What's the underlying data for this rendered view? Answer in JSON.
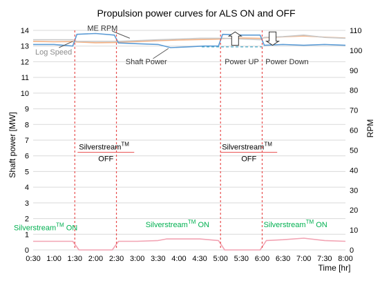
{
  "chart_data": {
    "type": "line",
    "title": "Propulsion power curves for ALS ON and OFF",
    "xlabel": "Time [hr]",
    "ylabel": "Shaft power [MW]",
    "y2label": "RPM",
    "xlim": [
      0.5,
      8.0
    ],
    "ylim": [
      0,
      14
    ],
    "y2lim": [
      0,
      110
    ],
    "x_ticks": [
      0.5,
      1.0,
      1.5,
      2.0,
      2.5,
      3.0,
      3.5,
      4.0,
      4.5,
      5.0,
      5.5,
      6.0,
      6.5,
      7.0,
      7.5,
      8.0
    ],
    "x_tick_labels": [
      "0:30",
      "1:00",
      "1:30",
      "2:00",
      "2:30",
      "3:00",
      "3:30",
      "4:00",
      "4:30",
      "5:00",
      "5:30",
      "6:00",
      "6:30",
      "7:00",
      "7:30",
      "8:00"
    ],
    "y_ticks": [
      0,
      1,
      2,
      3,
      4,
      5,
      6,
      7,
      8,
      9,
      10,
      11,
      12,
      13,
      14
    ],
    "y2_ticks": [
      0,
      10,
      20,
      30,
      40,
      50,
      60,
      70,
      80,
      90,
      100,
      110
    ],
    "grid": true,
    "series": [
      {
        "name": "ME RPM",
        "axis": "right",
        "color": "#f4b183",
        "x": [
          0.5,
          1.0,
          1.45,
          1.55,
          2.0,
          2.45,
          2.55,
          3.0,
          3.5,
          4.0,
          4.5,
          4.95,
          5.05,
          5.5,
          5.95,
          6.05,
          6.5,
          7.0,
          7.5,
          8.0
        ],
        "y": [
          104.5,
          104.3,
          104.4,
          104.2,
          103.8,
          103.9,
          104.1,
          104.4,
          104.8,
          105.2,
          105.4,
          105.6,
          105.9,
          106.2,
          106.0,
          106.3,
          106.8,
          107.2,
          106.6,
          106.2
        ]
      },
      {
        "name": "Log Speed",
        "axis": "left",
        "color": "#c9c9c9",
        "x": [
          0.5,
          1.0,
          1.45,
          1.55,
          2.0,
          2.45,
          2.55,
          3.0,
          3.5,
          4.0,
          4.5,
          4.95,
          5.05,
          5.5,
          5.95,
          6.05,
          6.5,
          7.0,
          7.5,
          8.0
        ],
        "y": [
          13.4,
          13.4,
          13.4,
          13.3,
          13.3,
          13.3,
          13.3,
          13.35,
          13.4,
          13.45,
          13.5,
          13.5,
          13.5,
          13.45,
          13.4,
          13.55,
          13.6,
          13.7,
          13.55,
          13.5
        ]
      },
      {
        "name": "Shaft Power",
        "axis": "left",
        "color": "#5b9bd5",
        "x": [
          0.5,
          1.0,
          1.45,
          1.55,
          2.0,
          2.45,
          2.55,
          3.0,
          3.5,
          3.8,
          4.2,
          4.6,
          4.95,
          5.05,
          5.5,
          5.95,
          6.05,
          6.5,
          7.0,
          7.5,
          8.0
        ],
        "y": [
          13.1,
          13.1,
          13.0,
          13.75,
          13.8,
          13.7,
          13.2,
          13.15,
          13.1,
          12.9,
          12.95,
          13.0,
          13.0,
          13.75,
          13.7,
          13.7,
          13.05,
          13.1,
          13.05,
          13.1,
          13.05
        ]
      },
      {
        "name": "Silverstream",
        "axis": "left",
        "color": "#f2a3b3",
        "x": [
          0.5,
          1.0,
          1.45,
          1.6,
          2.0,
          2.4,
          2.55,
          3.0,
          3.5,
          3.7,
          4.5,
          4.95,
          5.1,
          5.5,
          5.95,
          6.1,
          6.5,
          7.0,
          7.5,
          8.0
        ],
        "y": [
          0.55,
          0.55,
          0.55,
          0.0,
          0.0,
          0.0,
          0.55,
          0.55,
          0.6,
          0.7,
          0.7,
          0.6,
          0.0,
          0.0,
          0.0,
          0.6,
          0.65,
          0.75,
          0.6,
          0.55
        ]
      }
    ],
    "power_up_level": 12.95,
    "transitions": [
      1.5,
      2.5,
      5.0,
      6.0
    ],
    "annotations": [
      {
        "text": "ME RPM",
        "color": "#333333"
      },
      {
        "text": "Log Speed",
        "color": "#8c8c8c"
      },
      {
        "text": "Shaft Power",
        "color": "#333333"
      },
      {
        "text": "Power UP",
        "color": "#333333"
      },
      {
        "text": "Power Down",
        "color": "#333333"
      }
    ],
    "off_labels": [
      {
        "main": "Silverstream",
        "sup": "TM",
        "sub": "OFF"
      },
      {
        "main": "Silverstream",
        "sup": "TM",
        "sub": "OFF"
      }
    ],
    "on_labels": [
      {
        "main": "Silverstream",
        "sup": "TM",
        "tail": "ON"
      },
      {
        "main": "Silverstream",
        "sup": "TM",
        "tail": "ON"
      },
      {
        "main": "Silverstream",
        "sup": "TM",
        "tail": "ON"
      }
    ],
    "on_color": "#00b050",
    "off_color": "#000000",
    "marker_color": "#e84c4c"
  }
}
